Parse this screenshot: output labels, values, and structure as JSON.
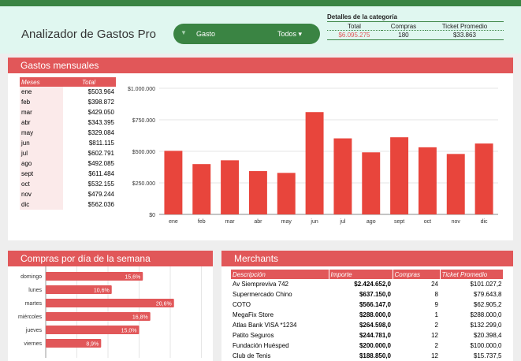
{
  "app": {
    "title": "Analizador de Gastos Pro"
  },
  "filter": {
    "icon": "filter-icon",
    "label": "Gasto",
    "value": "Todos ▾"
  },
  "details": {
    "title": "Detalles de la categoría",
    "headers": [
      "Total",
      "Compras",
      "Ticket Promedio"
    ],
    "values": [
      "$6.095.275",
      "180",
      "$33.863"
    ],
    "total_color": "#e15759"
  },
  "monthly": {
    "title": "Gastos mensuales",
    "headers": [
      "Meses",
      "Total"
    ],
    "rows": [
      [
        "ene",
        "$503.964"
      ],
      [
        "feb",
        "$398.872"
      ],
      [
        "mar",
        "$429.050"
      ],
      [
        "abr",
        "$343.395"
      ],
      [
        "may",
        "$329.084"
      ],
      [
        "jun",
        "$811.115"
      ],
      [
        "jul",
        "$602.791"
      ],
      [
        "ago",
        "$492.085"
      ],
      [
        "sept",
        "$611.484"
      ],
      [
        "oct",
        "$532.155"
      ],
      [
        "nov",
        "$479.244"
      ],
      [
        "dic",
        "$562.036"
      ]
    ]
  },
  "chart_data": [
    {
      "type": "bar",
      "title": "Gastos mensuales",
      "categories": [
        "ene",
        "feb",
        "mar",
        "abr",
        "may",
        "jun",
        "jul",
        "ago",
        "sept",
        "oct",
        "nov",
        "dic"
      ],
      "values": [
        503964,
        398872,
        429050,
        343395,
        329084,
        811115,
        602791,
        492085,
        611484,
        532155,
        479244,
        562036
      ],
      "ylim": [
        0,
        1000000
      ],
      "yticks": [
        0,
        250000,
        500000,
        750000,
        1000000
      ],
      "ytick_labels": [
        "$0",
        "$250.000",
        "$500.000",
        "$750.000",
        "$1.000.000"
      ],
      "color": "#e8453c",
      "grid": true
    },
    {
      "type": "bar",
      "orientation": "horizontal",
      "title": "Compras por día de la semana",
      "categories": [
        "domingo",
        "lunes",
        "martes",
        "miércoles",
        "jueves",
        "viernes"
      ],
      "values": [
        15.6,
        10.6,
        20.6,
        16.8,
        15.0,
        8.9
      ],
      "labels": [
        "15,6%",
        "10,6%",
        "20,6%",
        "16,8%",
        "15,0%",
        "8,9%"
      ],
      "xlim": [
        0,
        25
      ],
      "color": "#e15759",
      "grid": true
    }
  ],
  "merchants": {
    "title": "Merchants",
    "headers": [
      "Descripción",
      "Importe",
      "Compras",
      "Ticket Promedio"
    ],
    "rows": [
      [
        "Av Siempreviva 742",
        "$2.424.652,0",
        "24",
        "$101.027,2"
      ],
      [
        "Supermercado Chino",
        "$637.150,0",
        "8",
        "$79.643,8"
      ],
      [
        "COTO",
        "$566.147,0",
        "9",
        "$62.905,2"
      ],
      [
        "MegaFix Store",
        "$288.000,0",
        "1",
        "$288.000,0"
      ],
      [
        "Atlas Bank VISA *1234",
        "$264.598,0",
        "2",
        "$132.299,0"
      ],
      [
        "Patito Seguros",
        "$244.781,0",
        "12",
        "$20.398,4"
      ],
      [
        "Fundación Huésped",
        "$200.000,0",
        "2",
        "$100.000,0"
      ],
      [
        "Club de Tenis",
        "$188.850,0",
        "12",
        "$15.737,5"
      ]
    ]
  }
}
